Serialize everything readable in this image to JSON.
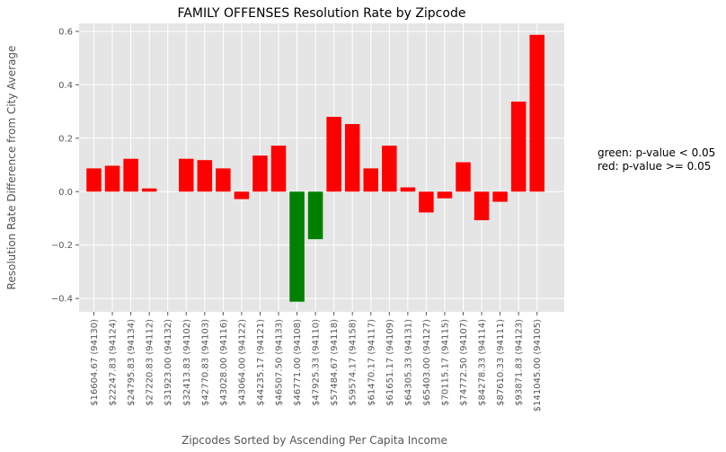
{
  "chart_data": {
    "type": "bar",
    "title": "FAMILY OFFENSES Resolution Rate by Zipcode",
    "xlabel": "Zipcodes Sorted by Ascending Per Capita Income",
    "ylabel": "Resolution Rate Difference from City Average",
    "ylim": [
      -0.45,
      0.63
    ],
    "yticks": [
      -0.4,
      -0.2,
      0.0,
      0.2,
      0.4,
      0.6
    ],
    "ytick_labels": [
      "−0.4",
      "−0.2",
      "0.0",
      "0.2",
      "0.4",
      "0.6"
    ],
    "grid": true,
    "categories": [
      "$16604.67 (94130)",
      "$22247.83 (94124)",
      "$24795.83 (94134)",
      "$27220.83 (94112)",
      "$31923.00 (94132)",
      "$32413.83 (94102)",
      "$42770.83 (94103)",
      "$43028.00 (94116)",
      "$43064.00 (94122)",
      "$44235.17 (94121)",
      "$46507.50 (94133)",
      "$46771.00 (94108)",
      "$47925.33 (94110)",
      "$57484.67 (94118)",
      "$59574.17 (94158)",
      "$61470.17 (94117)",
      "$61651.17 (94109)",
      "$64305.33 (94131)",
      "$65403.00 (94127)",
      "$70115.17 (94115)",
      "$74772.50 (94107)",
      "$84278.33 (94114)",
      "$87610.33 (94111)",
      "$93871.83 (94123)",
      "$141045.00 (94105)"
    ],
    "values": [
      0.087,
      0.097,
      0.123,
      0.012,
      0.0,
      0.123,
      0.118,
      0.087,
      -0.028,
      0.135,
      0.172,
      -0.412,
      -0.178,
      0.28,
      0.253,
      0.087,
      0.172,
      0.016,
      -0.078,
      -0.025,
      0.11,
      -0.107,
      -0.038,
      0.337,
      0.587
    ],
    "significant": [
      false,
      false,
      false,
      false,
      false,
      false,
      false,
      false,
      false,
      false,
      false,
      true,
      true,
      false,
      false,
      false,
      false,
      false,
      false,
      false,
      false,
      false,
      false,
      false,
      false
    ],
    "colors": {
      "significant": "#008000",
      "not_significant": "#ff0000"
    },
    "annotation": [
      "green: p-value < 0.05",
      "red: p-value >= 0.05"
    ]
  },
  "theme": {
    "plot_bg": "#e5e5e5",
    "grid_color": "#ffffff",
    "tick_color": "#555555"
  }
}
